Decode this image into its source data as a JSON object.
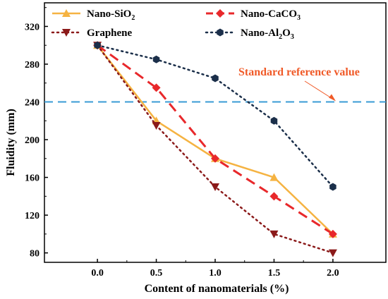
{
  "chart_data": {
    "type": "line",
    "xlabel": "Content of nanomaterials (%)",
    "ylabel": "Fluidity (mm)",
    "xlim": [
      -0.45,
      2.45
    ],
    "ylim": [
      70,
      345
    ],
    "x_ticks": [
      "0.0",
      "0.5",
      "1.0",
      "1.5",
      "2.0"
    ],
    "y_ticks": [
      "80",
      "120",
      "160",
      "200",
      "240",
      "280",
      "320"
    ],
    "grid": false,
    "legend_position": "top",
    "x": [
      0.0,
      0.5,
      1.0,
      1.5,
      2.0
    ],
    "series": [
      {
        "name": "Nano-SiO",
        "name_sub": "2",
        "color": "#F5B342",
        "line": "solid",
        "marker": "triangle-up",
        "values": [
          300,
          220,
          180,
          160,
          100
        ]
      },
      {
        "name": "Nano-CaCO",
        "name_sub": "3",
        "color": "#E8282B",
        "line": "dashed",
        "marker": "diamond",
        "values": [
          300,
          255,
          180,
          140,
          100
        ]
      },
      {
        "name": "Graphene",
        "name_sub": "",
        "color": "#8B1A1A",
        "line": "dotted",
        "marker": "triangle-down",
        "values": [
          300,
          215,
          150,
          100,
          80
        ]
      },
      {
        "name": "Nano-Al",
        "name_sub": "2",
        "name_mid": "O",
        "name_sub2": "3",
        "color": "#1B2F4A",
        "line": "dotted",
        "marker": "hexagon",
        "values": [
          300,
          285,
          265,
          220,
          150
        ]
      }
    ],
    "reference_line": {
      "value": 240,
      "color": "#3A9BD5",
      "label": "Standard reference value",
      "label_color": "#F05A28"
    }
  }
}
